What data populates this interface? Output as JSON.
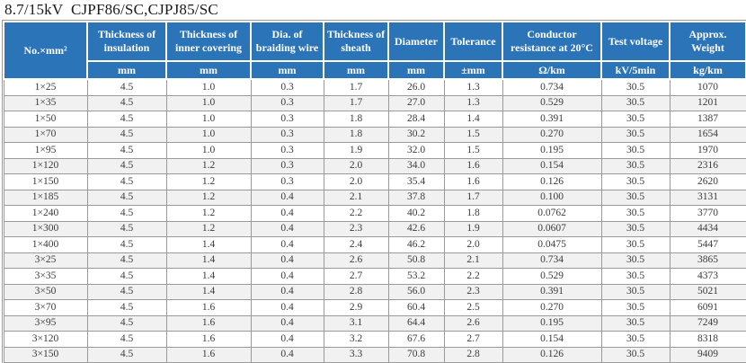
{
  "title": "8.7/15kV  CJPF86/SC,CJPJ85/SC",
  "colors": {
    "header_bg": "#2b74b8",
    "header_text": "#ffffff",
    "row_alt_bg": "#f1f1f1",
    "grid_line": "#9a9a9a"
  },
  "table": {
    "columns": [
      {
        "label": "No.×mm²",
        "unit": ""
      },
      {
        "label": "Thickness of insulation",
        "unit": "mm"
      },
      {
        "label": "Thickness of inner covering",
        "unit": "mm"
      },
      {
        "label": "Dia. of braiding wire",
        "unit": "mm"
      },
      {
        "label": "Thickness of sheath",
        "unit": "mm"
      },
      {
        "label": "Diameter",
        "unit": "mm"
      },
      {
        "label": "Tolerance",
        "unit": "±mm"
      },
      {
        "label": "Conductor resistance at 20°C",
        "unit": "Ω/km"
      },
      {
        "label": "Test voltage",
        "unit": "kV/5min"
      },
      {
        "label": "Approx. Weight",
        "unit": "kg/km"
      }
    ],
    "rows": [
      [
        "1×25",
        "4.5",
        "1.0",
        "0.3",
        "1.7",
        "26.0",
        "1.3",
        "0.734",
        "30.5",
        "1070"
      ],
      [
        "1×35",
        "4.5",
        "1.0",
        "0.3",
        "1.7",
        "27.0",
        "1.3",
        "0.529",
        "30.5",
        "1201"
      ],
      [
        "1×50",
        "4.5",
        "1.0",
        "0.3",
        "1.8",
        "28.4",
        "1.4",
        "0.391",
        "30.5",
        "1387"
      ],
      [
        "1×70",
        "4.5",
        "1.0",
        "0.3",
        "1.8",
        "30.2",
        "1.5",
        "0.270",
        "30.5",
        "1654"
      ],
      [
        "1×95",
        "4.5",
        "1.0",
        "0.3",
        "1.9",
        "32.0",
        "1.5",
        "0.195",
        "30.5",
        "1970"
      ],
      [
        "1×120",
        "4.5",
        "1.2",
        "0.3",
        "2.0",
        "34.0",
        "1.6",
        "0.154",
        "30.5",
        "2316"
      ],
      [
        "1×150",
        "4.5",
        "1.2",
        "0.3",
        "2.0",
        "35.4",
        "1.6",
        "0.126",
        "30.5",
        "2620"
      ],
      [
        "1×185",
        "4.5",
        "1.2",
        "0.4",
        "2.1",
        "37.8",
        "1.7",
        "0.100",
        "30.5",
        "3131"
      ],
      [
        "1×240",
        "4.5",
        "1.2",
        "0.4",
        "2.2",
        "40.2",
        "1.8",
        "0.0762",
        "30.5",
        "3770"
      ],
      [
        "1×300",
        "4.5",
        "1.2",
        "0.4",
        "2.3",
        "42.6",
        "1.9",
        "0.0607",
        "30.5",
        "4434"
      ],
      [
        "1×400",
        "4.5",
        "1.4",
        "0.4",
        "2.4",
        "46.2",
        "2.0",
        "0.0475",
        "30.5",
        "5447"
      ],
      [
        "3×25",
        "4.5",
        "1.4",
        "0.4",
        "2.6",
        "50.8",
        "2.1",
        "0.734",
        "30.5",
        "3865"
      ],
      [
        "3×35",
        "4.5",
        "1.4",
        "0.4",
        "2.7",
        "53.2",
        "2.2",
        "0.529",
        "30.5",
        "4373"
      ],
      [
        "3×50",
        "4.5",
        "1.4",
        "0.4",
        "2.8",
        "56.0",
        "2.3",
        "0.391",
        "30.5",
        "5021"
      ],
      [
        "3×70",
        "4.5",
        "1.6",
        "0.4",
        "2.9",
        "60.4",
        "2.5",
        "0.270",
        "30.5",
        "6091"
      ],
      [
        "3×95",
        "4.5",
        "1.6",
        "0.4",
        "3.1",
        "64.4",
        "2.6",
        "0.195",
        "30.5",
        "7249"
      ],
      [
        "3×120",
        "4.5",
        "1.6",
        "0.4",
        "3.2",
        "67.6",
        "2.7",
        "0.154",
        "30.5",
        "8318"
      ],
      [
        "3×150",
        "4.5",
        "1.6",
        "0.4",
        "3.3",
        "70.8",
        "2.8",
        "0.126",
        "30.5",
        "9409"
      ]
    ]
  }
}
